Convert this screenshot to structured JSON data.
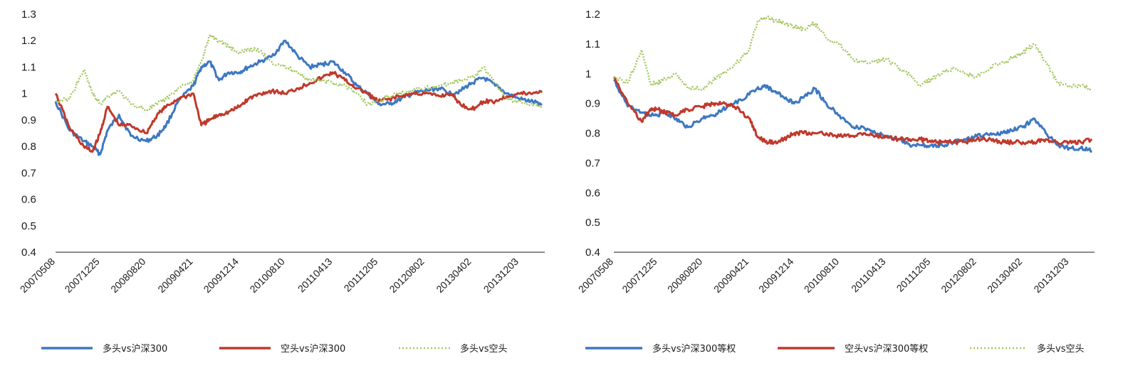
{
  "chart_data": [
    {
      "type": "line",
      "ylim": [
        0.4,
        1.3
      ],
      "yticks": [
        "1.3",
        "1.2",
        "1.1",
        "1",
        "0.9",
        "0.8",
        "0.7",
        "0.6",
        "0.5",
        "0.4"
      ],
      "ytick_values": [
        1.3,
        1.2,
        1.1,
        1.0,
        0.9,
        0.8,
        0.7,
        0.6,
        0.5,
        0.4
      ],
      "xticks": [
        "20070508",
        "20071225",
        "20080820",
        "20090421",
        "20091214",
        "20100810",
        "20110413",
        "20111205",
        "20120802",
        "20130402",
        "20131203"
      ],
      "series": [
        {
          "name": "多头vs沪深300",
          "color": "#3d78c2",
          "style": "solid",
          "x": [
            "20070508",
            "20070720",
            "20071001",
            "20071115",
            "20071225",
            "20080201",
            "20080401",
            "20080601",
            "20080820",
            "20081015",
            "20081201",
            "20090201",
            "20090421",
            "20090601",
            "20090715",
            "20090901",
            "20091020",
            "20091214",
            "20100201",
            "20100401",
            "20100601",
            "20100810",
            "20101015",
            "20101215",
            "20110215",
            "20110413",
            "20110615",
            "20110815",
            "20111010",
            "20111205",
            "20120201",
            "20120401",
            "20120601",
            "20120802",
            "20121015",
            "20121215",
            "20130201",
            "20130402",
            "20130601",
            "20130801",
            "20131001",
            "20131203",
            "20140201",
            "20140401"
          ],
          "values": [
            0.97,
            0.86,
            0.82,
            0.8,
            0.77,
            0.86,
            0.92,
            0.84,
            0.82,
            0.84,
            0.88,
            0.97,
            1.03,
            1.1,
            1.12,
            1.05,
            1.08,
            1.08,
            1.1,
            1.12,
            1.14,
            1.2,
            1.14,
            1.1,
            1.11,
            1.12,
            1.08,
            1.03,
            1.0,
            0.96,
            0.96,
            0.98,
            1.0,
            1.01,
            1.02,
            1.0,
            1.01,
            1.04,
            1.06,
            1.03,
            1.0,
            0.98,
            0.97,
            0.96
          ]
        },
        {
          "name": "空头vs沪深300",
          "color": "#c0392b",
          "style": "solid",
          "x": [
            "20070508",
            "20070720",
            "20071001",
            "20071115",
            "20071225",
            "20080201",
            "20080401",
            "20080601",
            "20080820",
            "20081015",
            "20081201",
            "20090201",
            "20090421",
            "20090601",
            "20090715",
            "20090901",
            "20091020",
            "20091214",
            "20100201",
            "20100401",
            "20100601",
            "20100810",
            "20101015",
            "20101215",
            "20110215",
            "20110413",
            "20110615",
            "20110815",
            "20111010",
            "20111205",
            "20120201",
            "20120401",
            "20120601",
            "20120802",
            "20121015",
            "20121215",
            "20130201",
            "20130402",
            "20130601",
            "20130801",
            "20131001",
            "20131203",
            "20140201",
            "20140401"
          ],
          "values": [
            1.0,
            0.87,
            0.8,
            0.78,
            0.85,
            0.95,
            0.88,
            0.88,
            0.85,
            0.92,
            0.95,
            0.98,
            1.0,
            0.88,
            0.9,
            0.92,
            0.93,
            0.95,
            0.98,
            1.0,
            1.01,
            1.0,
            1.02,
            1.04,
            1.06,
            1.08,
            1.05,
            1.02,
            1.0,
            0.97,
            0.98,
            0.99,
            1.0,
            1.0,
            0.99,
            1.0,
            0.96,
            0.94,
            0.97,
            0.97,
            0.99,
            1.0,
            1.0,
            1.01
          ]
        },
        {
          "name": "多头vs空头",
          "color": "#a6c864",
          "style": "dotted",
          "x": [
            "20070508",
            "20070720",
            "20071001",
            "20071115",
            "20071225",
            "20080201",
            "20080401",
            "20080601",
            "20080820",
            "20081015",
            "20081201",
            "20090201",
            "20090421",
            "20090601",
            "20090715",
            "20090901",
            "20091020",
            "20091214",
            "20100201",
            "20100401",
            "20100601",
            "20100810",
            "20101015",
            "20101215",
            "20110215",
            "20110413",
            "20110615",
            "20110815",
            "20111010",
            "20111205",
            "20120201",
            "20120401",
            "20120601",
            "20120802",
            "20121015",
            "20121215",
            "20130201",
            "20130402",
            "20130601",
            "20130801",
            "20131001",
            "20131203",
            "20140201",
            "20140401"
          ],
          "values": [
            0.97,
            0.98,
            1.09,
            1.0,
            0.96,
            0.99,
            1.01,
            0.96,
            0.94,
            0.96,
            0.98,
            1.02,
            1.05,
            1.12,
            1.22,
            1.2,
            1.18,
            1.15,
            1.17,
            1.16,
            1.12,
            1.1,
            1.08,
            1.05,
            1.05,
            1.04,
            1.03,
            1.0,
            0.96,
            0.97,
            0.99,
            1.0,
            1.01,
            1.02,
            1.03,
            1.04,
            1.05,
            1.06,
            1.1,
            1.04,
            0.98,
            0.97,
            0.96,
            0.95
          ]
        }
      ]
    },
    {
      "type": "line",
      "ylim": [
        0.4,
        1.2
      ],
      "yticks": [
        "1.2",
        "1.1",
        "1",
        "0.9",
        "0.8",
        "0.7",
        "0.6",
        "0.5",
        "0.4"
      ],
      "ytick_values": [
        1.2,
        1.1,
        1.0,
        0.9,
        0.8,
        0.7,
        0.6,
        0.5,
        0.4
      ],
      "xticks": [
        "20070508",
        "20071225",
        "20080820",
        "20090421",
        "20091214",
        "20100810",
        "20110413",
        "20111205",
        "20120802",
        "20130402",
        "20131203"
      ],
      "series": [
        {
          "name": "多头vs沪深300等权",
          "color": "#3d78c2",
          "style": "solid",
          "x": [
            "20070508",
            "20070720",
            "20071001",
            "20071115",
            "20071225",
            "20080201",
            "20080401",
            "20080601",
            "20080820",
            "20081015",
            "20081201",
            "20090201",
            "20090421",
            "20090601",
            "20090715",
            "20090901",
            "20091020",
            "20091214",
            "20100201",
            "20100401",
            "20100601",
            "20100810",
            "20101015",
            "20101215",
            "20110215",
            "20110413",
            "20110615",
            "20110815",
            "20111010",
            "20111205",
            "20120201",
            "20120401",
            "20120601",
            "20120802",
            "20121015",
            "20121215",
            "20130201",
            "20130402",
            "20130601",
            "20130801",
            "20131001",
            "20131203",
            "20140201",
            "20140401"
          ],
          "values": [
            0.98,
            0.89,
            0.87,
            0.86,
            0.86,
            0.87,
            0.85,
            0.82,
            0.85,
            0.86,
            0.88,
            0.9,
            0.93,
            0.95,
            0.96,
            0.94,
            0.92,
            0.9,
            0.92,
            0.95,
            0.9,
            0.86,
            0.82,
            0.82,
            0.8,
            0.79,
            0.78,
            0.76,
            0.76,
            0.76,
            0.76,
            0.77,
            0.78,
            0.79,
            0.8,
            0.8,
            0.81,
            0.82,
            0.85,
            0.8,
            0.76,
            0.75,
            0.75,
            0.74
          ]
        },
        {
          "name": "空头vs沪深300等权",
          "color": "#c0392b",
          "style": "solid",
          "x": [
            "20070508",
            "20070720",
            "20071001",
            "20071115",
            "20071225",
            "20080201",
            "20080401",
            "20080601",
            "20080820",
            "20081015",
            "20081201",
            "20090201",
            "20090421",
            "20090601",
            "20090715",
            "20090901",
            "20091020",
            "20091214",
            "20100201",
            "20100401",
            "20100601",
            "20100810",
            "20101015",
            "20101215",
            "20110215",
            "20110413",
            "20110615",
            "20110815",
            "20111010",
            "20111205",
            "20120201",
            "20120401",
            "20120601",
            "20120802",
            "20121015",
            "20121215",
            "20130201",
            "20130402",
            "20130601",
            "20130801",
            "20131001",
            "20131203",
            "20140201",
            "20140401"
          ],
          "values": [
            0.99,
            0.9,
            0.84,
            0.88,
            0.88,
            0.87,
            0.86,
            0.88,
            0.89,
            0.9,
            0.9,
            0.89,
            0.85,
            0.79,
            0.77,
            0.77,
            0.78,
            0.8,
            0.8,
            0.8,
            0.8,
            0.79,
            0.79,
            0.8,
            0.79,
            0.79,
            0.78,
            0.78,
            0.78,
            0.77,
            0.77,
            0.77,
            0.77,
            0.78,
            0.78,
            0.77,
            0.77,
            0.77,
            0.77,
            0.78,
            0.77,
            0.77,
            0.77,
            0.78
          ]
        },
        {
          "name": "多头vs空头",
          "color": "#a6c864",
          "style": "dotted",
          "x": [
            "20070508",
            "20070720",
            "20071001",
            "20071115",
            "20071225",
            "20080201",
            "20080401",
            "20080601",
            "20080820",
            "20081015",
            "20081201",
            "20090201",
            "20090421",
            "20090601",
            "20090715",
            "20090901",
            "20091020",
            "20091214",
            "20100201",
            "20100401",
            "20100601",
            "20100810",
            "20101015",
            "20101215",
            "20110215",
            "20110413",
            "20110615",
            "20110815",
            "20111010",
            "20111205",
            "20120201",
            "20120401",
            "20120601",
            "20120802",
            "20121015",
            "20121215",
            "20130201",
            "20130402",
            "20130601",
            "20130801",
            "20131001",
            "20131203",
            "20140201",
            "20140401"
          ],
          "values": [
            0.99,
            0.97,
            1.08,
            0.97,
            0.97,
            0.98,
            1.0,
            0.95,
            0.95,
            0.98,
            1.0,
            1.03,
            1.08,
            1.17,
            1.19,
            1.18,
            1.17,
            1.16,
            1.15,
            1.17,
            1.12,
            1.1,
            1.05,
            1.04,
            1.04,
            1.05,
            1.02,
            1.0,
            0.96,
            0.98,
            1.0,
            1.02,
            1.0,
            0.99,
            1.02,
            1.04,
            1.05,
            1.07,
            1.1,
            1.04,
            0.97,
            0.96,
            0.96,
            0.95
          ]
        }
      ]
    }
  ]
}
